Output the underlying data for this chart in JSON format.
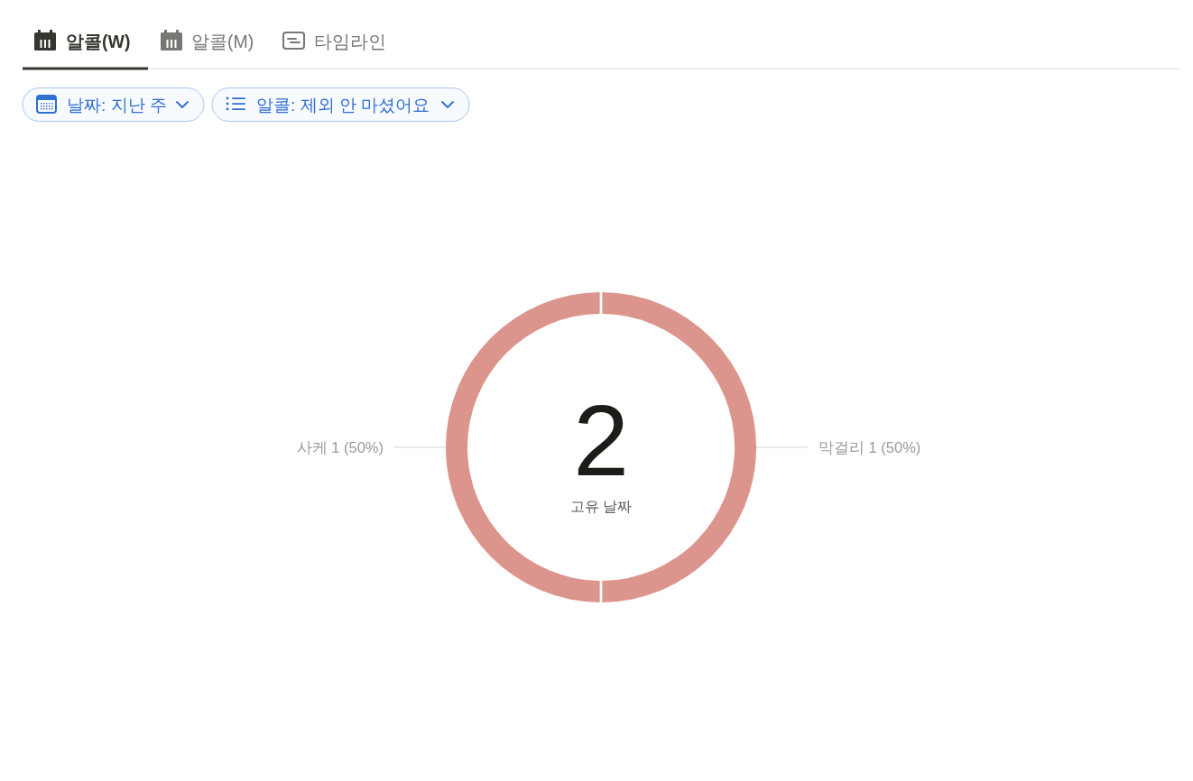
{
  "chart_data": {
    "type": "donut",
    "categories": [
      "막걸리",
      "사케"
    ],
    "values": [
      1,
      1
    ],
    "colors": [
      "#dc958d",
      "#dc958d"
    ],
    "value_labels": [
      "1 (50%)",
      "1 (50%)"
    ],
    "annotations": [
      "알콜(W)",
      "알콜(M)",
      "타임라인",
      "날짜: 지난 주",
      "알콜: 제외 안 마셨어요",
      "2",
      "고유 날짜"
    ]
  }
}
